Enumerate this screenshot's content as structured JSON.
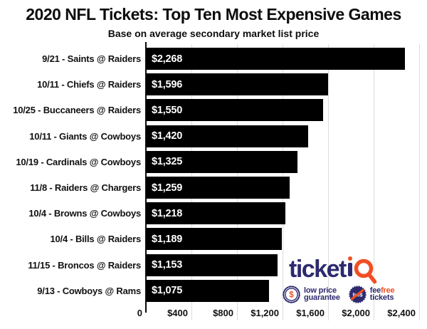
{
  "title": "2020 NFL Tickets: Top Ten Most Expensive Games",
  "subtitle": "Base on average secondary market list price",
  "chart_data": {
    "type": "bar",
    "orientation": "horizontal",
    "title": "2020 NFL Tickets: Top Ten Most Expensive Games",
    "subtitle": "Base on average secondary market list price",
    "categories": [
      "9/21 - Saints @ Raiders",
      "10/11 - Chiefs @ Raiders",
      "10/25 - Buccaneers @ Raiders",
      "10/11 - Giants @ Cowboys",
      "10/19 - Cardinals @ Cowboys",
      "11/8 - Raiders @ Chargers",
      "10/4 - Browns @ Cowboys",
      "10/4 - Bills @ Raiders",
      "11/15 - Broncos @ Raiders",
      "9/13 - Cowboys @ Rams"
    ],
    "values": [
      2268,
      1596,
      1550,
      1420,
      1325,
      1259,
      1218,
      1189,
      1153,
      1075
    ],
    "value_labels": [
      "$2,268",
      "$1,596",
      "$1,550",
      "$1,420",
      "$1,325",
      "$1,259",
      "$1,218",
      "$1,189",
      "$1,153",
      "$1,075"
    ],
    "xlim": [
      0,
      2400
    ],
    "x_ticks": [
      {
        "v": 0,
        "label": "0"
      },
      {
        "v": 400,
        "label": "$400"
      },
      {
        "v": 800,
        "label": "$800"
      },
      {
        "v": 1200,
        "label": "$1,200"
      },
      {
        "v": 1600,
        "label": "$1,600"
      },
      {
        "v": 2000,
        "label": "$2,000"
      },
      {
        "v": 2400,
        "label": "$2,400"
      }
    ],
    "grid": true,
    "legend": false,
    "bar_color": "#000000",
    "bar_label_color": "#ffffff"
  },
  "logo": {
    "brand": "ticketiQ",
    "brand_ticket": "ticket",
    "badges": [
      {
        "icon": "dollar-seal-icon",
        "icon_text": "$",
        "line1": "low price",
        "line2": "guarantee"
      },
      {
        "icon": "no-fee-icon",
        "icon_text": "fee$",
        "line1_part1": "fee",
        "line1_part2": "free",
        "line2": "tickets"
      }
    ]
  },
  "colors": {
    "navy": "#2d2a6e",
    "orange": "#f04f23",
    "bar": "#000000",
    "gridline": "#dcdcdc",
    "text": "#0d0d0d"
  }
}
